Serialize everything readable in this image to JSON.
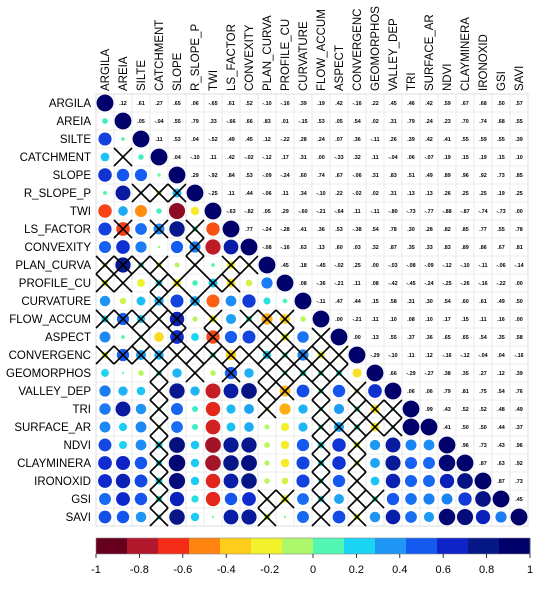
{
  "chart_data": {
    "type": "heatmap",
    "variables": [
      "ARGILA",
      "AREIA",
      "SILTE",
      "CATCHMENT",
      "SLOPE",
      "R_SLOPE_P",
      "TWI",
      "LS_FACTOR",
      "CONVEXITY",
      "PLAN_CURVA",
      "PROFILE_CU",
      "CURVATURE",
      "FLOW_ACCUM",
      "ASPECT",
      "CONVERGENC",
      "GEOMORPHOS",
      "VALLEY_DEP",
      "TRI",
      "SURFACE_AR",
      "NDVI",
      "CLAYMINERA",
      "IRONOXID",
      "GSI",
      "SAVI"
    ],
    "upper_rows": [
      [
        0.12,
        0.61,
        0.27,
        0.65,
        0.06,
        -0.65,
        0.61,
        0.52,
        -0.1,
        -0.16,
        0.39,
        0.19,
        0.42,
        -0.16,
        0.22,
        0.45,
        0.46,
        0.42,
        0.59,
        0.67,
        0.68,
        0.5,
        0.57
      ],
      [
        0.05,
        -0.04,
        0.55,
        0.79,
        0.33,
        -0.66,
        0.66,
        0.83,
        0.01,
        -0.15,
        0.53,
        0.05,
        0.54,
        0.02,
        0.31,
        0.79,
        0.24,
        0.23,
        0.7,
        0.74,
        0.68,
        0.55,
        0.65
      ],
      [
        0.11,
        0.53,
        0.04,
        -0.52,
        0.49,
        0.45,
        0.12,
        -0.22,
        0.28,
        0.24,
        0.07,
        0.36,
        -0.11,
        0.26,
        0.39,
        0.42,
        0.41,
        0.55,
        0.59,
        0.55,
        0.39,
        0.57
      ],
      [
        0.04,
        -0.1,
        0.11,
        0.42,
        -0.02,
        -0.12,
        0.17,
        0.31,
        0.0,
        -0.33,
        0.32,
        0.11,
        -0.04,
        0.06,
        -0.07,
        0.19,
        0.15,
        0.19,
        0.15,
        0.1,
        -0.05,
        0.14
      ],
      [
        0.29,
        -0.92,
        0.84,
        0.53,
        -0.09,
        -0.24,
        0.6,
        0.74,
        0.67,
        -0.06,
        0.31,
        0.83,
        0.51,
        0.49,
        0.89,
        0.96,
        0.92,
        0.73,
        0.85
      ],
      [
        -0.25,
        0.11,
        0.44,
        -0.06,
        0.11,
        0.34,
        -0.1,
        0.22,
        -0.02,
        0.02,
        0.31,
        0.13,
        0.13,
        0.26,
        0.25,
        0.25,
        0.19,
        0.25
      ],
      [
        -0.63,
        -0.82,
        0.05,
        0.29,
        -0.6,
        -0.21,
        -0.64,
        0.11,
        -0.11,
        -0.8,
        -0.73,
        -0.77,
        -0.88,
        -0.87,
        -0.74,
        -0.73
      ],
      [
        0.77,
        -0.24,
        -0.28,
        0.41,
        0.36,
        0.53,
        -0.38,
        0.54,
        0.78,
        0.3,
        0.28,
        0.82,
        0.85,
        0.77,
        0.55,
        0.78
      ],
      [
        -0.08,
        -0.16,
        0.63,
        0.13,
        0.6,
        0.03,
        0.32,
        0.87,
        0.35,
        0.33,
        0.83,
        0.89,
        0.86,
        0.67,
        0.81
      ],
      [
        0.45,
        0.18,
        -0.45,
        -0.02,
        0.25,
        0.0,
        -0.03,
        -0.08,
        -0.09,
        -0.12,
        -0.1,
        -0.11,
        -0.06,
        -0.14
      ],
      [
        0.08,
        -0.36,
        -0.21,
        0.11,
        0.08,
        -0.42,
        -0.45,
        -0.24,
        -0.25,
        -0.26,
        -0.16,
        -0.22
      ],
      [
        -0.11,
        0.47,
        0.44,
        0.15,
        0.58,
        0.31,
        0.3,
        0.54,
        0.6,
        0.61,
        0.49,
        0.5
      ],
      [
        0.0,
        -0.21,
        0.11,
        0.1,
        0.08,
        0.1,
        0.17,
        0.15,
        0.11,
        0.16
      ],
      [
        0.0,
        0.13,
        0.55,
        0.37,
        0.36,
        0.65,
        0.65,
        0.54,
        0.35,
        0.58
      ],
      [
        -0.29,
        -0.1,
        0.11,
        0.12,
        -0.16,
        -0.12,
        -0.04,
        0.04,
        -0.16
      ],
      [
        0.66,
        -0.29,
        -0.27,
        0.38,
        0.35,
        0.27,
        0.12,
        0.39
      ],
      [
        0.06,
        0.06,
        0.79,
        0.81,
        0.75,
        0.54,
        0.76
      ],
      [
        0.99,
        0.43,
        0.52,
        0.52,
        0.48,
        0.49
      ],
      [
        0.41,
        0.5,
        0.5,
        0.44,
        0.37
      ],
      [
        0.96,
        0.73,
        0.43,
        0.96
      ],
      [
        0.87,
        0.63,
        0.92
      ],
      [
        0.87,
        0.73
      ],
      [
        0.45
      ],
      []
    ],
    "crossed_pairs": [
      [
        3,
        1
      ],
      [
        5,
        2
      ],
      [
        5,
        3
      ],
      [
        5,
        4
      ],
      [
        7,
        1
      ],
      [
        7,
        3
      ],
      [
        7,
        5
      ],
      [
        8,
        5
      ],
      [
        9,
        0
      ],
      [
        9,
        1
      ],
      [
        9,
        2
      ],
      [
        9,
        3
      ],
      [
        9,
        5
      ],
      [
        9,
        7
      ],
      [
        9,
        8
      ],
      [
        10,
        0
      ],
      [
        10,
        1
      ],
      [
        10,
        3
      ],
      [
        10,
        4
      ],
      [
        10,
        6
      ],
      [
        10,
        7
      ],
      [
        11,
        3
      ],
      [
        11,
        5
      ],
      [
        12,
        0
      ],
      [
        12,
        1
      ],
      [
        12,
        2
      ],
      [
        12,
        3
      ],
      [
        12,
        4
      ],
      [
        12,
        6
      ],
      [
        12,
        8
      ],
      [
        12,
        9
      ],
      [
        12,
        10
      ],
      [
        13,
        2
      ],
      [
        13,
        4
      ],
      [
        13,
        6
      ],
      [
        13,
        9
      ],
      [
        13,
        10
      ],
      [
        13,
        12
      ],
      [
        14,
        0
      ],
      [
        14,
        1
      ],
      [
        14,
        2
      ],
      [
        14,
        3
      ],
      [
        14,
        4
      ],
      [
        14,
        5
      ],
      [
        14,
        6
      ],
      [
        14,
        7
      ],
      [
        14,
        8
      ],
      [
        14,
        9
      ],
      [
        14,
        10
      ],
      [
        14,
        11
      ],
      [
        14,
        12
      ],
      [
        14,
        13
      ],
      [
        15,
        3
      ],
      [
        15,
        5
      ],
      [
        15,
        7
      ],
      [
        15,
        9
      ],
      [
        15,
        10
      ],
      [
        15,
        11
      ],
      [
        15,
        12
      ],
      [
        15,
        13
      ],
      [
        16,
        3
      ],
      [
        16,
        9
      ],
      [
        16,
        10
      ],
      [
        16,
        12
      ],
      [
        16,
        14
      ],
      [
        17,
        3
      ],
      [
        17,
        9
      ],
      [
        17,
        12
      ],
      [
        17,
        14
      ],
      [
        17,
        15
      ],
      [
        17,
        16
      ],
      [
        18,
        3
      ],
      [
        18,
        12
      ],
      [
        18,
        13
      ],
      [
        18,
        14
      ],
      [
        18,
        15
      ],
      [
        18,
        16
      ],
      [
        19,
        3
      ],
      [
        19,
        12
      ],
      [
        19,
        14
      ],
      [
        20,
        3
      ],
      [
        20,
        12
      ],
      [
        20,
        14
      ],
      [
        21,
        3
      ],
      [
        21,
        12
      ],
      [
        21,
        14
      ],
      [
        22,
        3
      ],
      [
        22,
        9
      ],
      [
        22,
        10
      ],
      [
        22,
        12
      ],
      [
        22,
        14
      ],
      [
        22,
        15
      ],
      [
        23,
        3
      ],
      [
        23,
        9
      ],
      [
        23,
        12
      ],
      [
        23,
        14
      ]
    ],
    "colorbar": {
      "ticks": [
        "-1",
        "-0.8",
        "-0.6",
        "-0.4",
        "-0.2",
        "0",
        "0.2",
        "0.4",
        "0.6",
        "0.8",
        "1"
      ],
      "colors": [
        "#67001F",
        "#B2182B",
        "#F42B16",
        "#FF8412",
        "#FFCC1A",
        "#F2F22C",
        "#ADF76A",
        "#51F7B2",
        "#1BD3F3",
        "#1E96F5",
        "#155AF0",
        "#0E24C9",
        "#061788",
        "#00006B"
      ]
    },
    "range": [
      -1,
      1
    ]
  }
}
